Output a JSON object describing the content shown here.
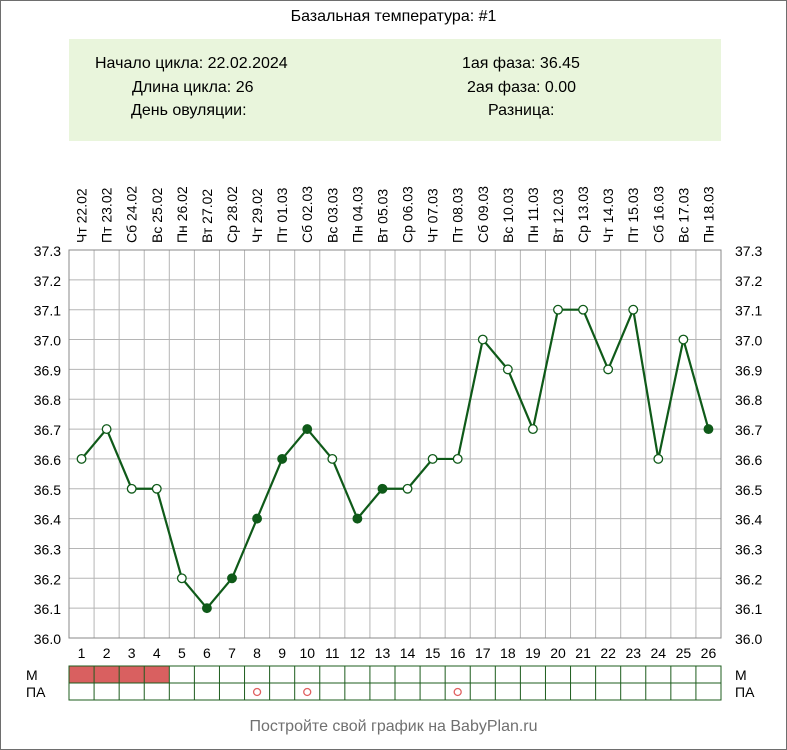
{
  "title": "Базальная температура: #1",
  "info": {
    "cycle_start": "Начало цикла: 22.02.2024",
    "cycle_length": "Длина цикла: 26",
    "ovulation_day": "День овуляции:",
    "phase1": "1ая фаза: 36.45",
    "phase2": "2ая фаза: 0.00",
    "difference": "Разница:"
  },
  "footer": "Постройте свой график на BabyPlan.ru",
  "row_labels": {
    "m": "М",
    "pa": "ПА"
  },
  "colors": {
    "line": "#0f5a19",
    "grid": "#b5b5b5",
    "border": "#1d5c1d",
    "info_bg": "#e9f5dc",
    "menstruation": "#d96060",
    "pa_marker": "#e06060"
  },
  "chart_data": {
    "type": "line",
    "title": "Базальная температура: #1",
    "ylim": [
      36.0,
      37.3
    ],
    "yticks": [
      "37.3",
      "37.2",
      "37.1",
      "37.0",
      "36.9",
      "36.8",
      "36.7",
      "36.6",
      "36.5",
      "36.4",
      "36.3",
      "36.2",
      "36.1",
      "36.0"
    ],
    "days": [
      "1",
      "2",
      "3",
      "4",
      "5",
      "6",
      "7",
      "8",
      "9",
      "10",
      "11",
      "12",
      "13",
      "14",
      "15",
      "16",
      "17",
      "18",
      "19",
      "20",
      "21",
      "22",
      "23",
      "24",
      "25",
      "26"
    ],
    "dates": [
      "Чт 22.02",
      "Пт 23.02",
      "Сб 24.02",
      "Вс 25.02",
      "Пн 26.02",
      "Вт 27.02",
      "Ср 28.02",
      "Чт 29.02",
      "Пт 01.03",
      "Сб 02.03",
      "Вс 03.03",
      "Пн 04.03",
      "Вт 05.03",
      "Ср 06.03",
      "Чт 07.03",
      "Пт 08.03",
      "Сб 09.03",
      "Вс 10.03",
      "Пн 11.03",
      "Вт 12.03",
      "Ср 13.03",
      "Чт 14.03",
      "Пт 15.03",
      "Сб 16.03",
      "Вс 17.03",
      "Пн 18.03"
    ],
    "temperatures": [
      36.6,
      36.7,
      36.5,
      36.5,
      36.2,
      36.1,
      36.2,
      36.4,
      36.6,
      36.7,
      36.6,
      36.4,
      36.5,
      36.5,
      36.6,
      36.6,
      37.0,
      36.9,
      36.7,
      37.1,
      37.1,
      36.9,
      37.1,
      36.6,
      37.0,
      36.7
    ],
    "filled_markers": [
      false,
      false,
      false,
      false,
      false,
      true,
      true,
      true,
      true,
      true,
      false,
      true,
      true,
      false,
      false,
      false,
      false,
      false,
      false,
      false,
      false,
      false,
      false,
      false,
      false,
      true
    ],
    "menstruation_days": [
      1,
      2,
      3,
      4
    ],
    "pa_days": [
      8,
      10,
      16
    ],
    "grid": true
  }
}
